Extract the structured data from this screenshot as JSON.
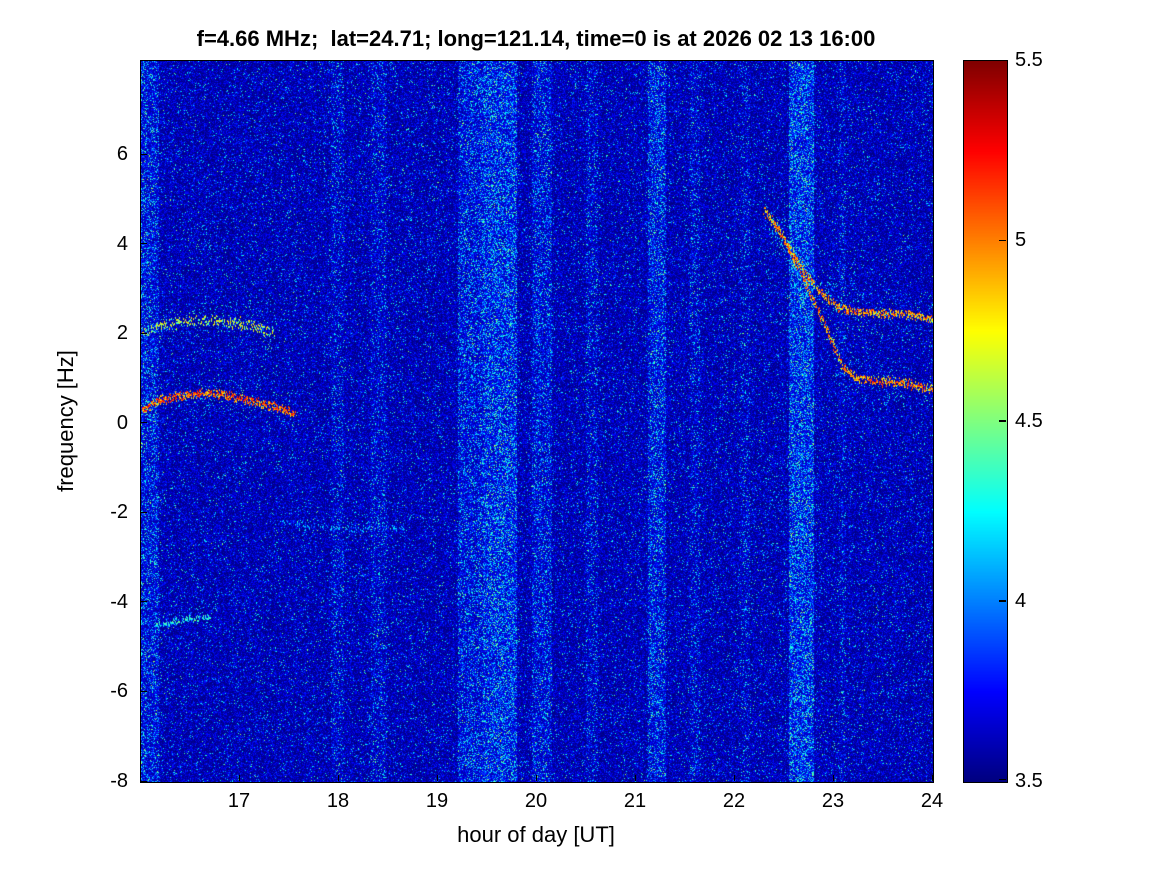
{
  "colors": {
    "background": "#ffffff",
    "text": "#000000",
    "axis": "#000000"
  },
  "chart_data": {
    "type": "heatmap",
    "title": "f=4.66 MHz;  lat=24.71; long=121.14, time=0 is at 2026 02 13 16:00",
    "xlabel": "hour of day [UT]",
    "ylabel": "frequency [Hz]",
    "xlim": [
      16,
      24
    ],
    "ylim": [
      -8,
      8.1
    ],
    "xticks": [
      17,
      18,
      19,
      20,
      21,
      22,
      23,
      24
    ],
    "yticks": [
      6,
      4,
      2,
      0,
      -2,
      -4,
      -6,
      -8
    ],
    "grid": false,
    "legend": false,
    "colorbar": {
      "min": 3.5,
      "max": 5.5,
      "ticks": [
        5.5,
        5,
        4.5,
        4,
        3.5
      ],
      "colormap": "jet",
      "position": "right"
    },
    "noise": {
      "base": 3.5,
      "spread": 0.32,
      "speckle_prob": 0.065,
      "speckle_min": 0.25,
      "speckle_max": 0.8
    },
    "vertical_bands": [
      {
        "x0": 16.0,
        "x1": 16.18,
        "amp": 0.1
      },
      {
        "x0": 17.92,
        "x1": 18.05,
        "amp": 0.05
      },
      {
        "x0": 18.32,
        "x1": 18.48,
        "amp": 0.05
      },
      {
        "x0": 19.2,
        "x1": 19.45,
        "amp": 0.1
      },
      {
        "x0": 19.45,
        "x1": 19.8,
        "amp": 0.15
      },
      {
        "x0": 19.95,
        "x1": 20.15,
        "amp": 0.09
      },
      {
        "x0": 20.5,
        "x1": 20.62,
        "amp": 0.05
      },
      {
        "x0": 21.12,
        "x1": 21.3,
        "amp": 0.11
      },
      {
        "x0": 21.55,
        "x1": 21.65,
        "amp": 0.05
      },
      {
        "x0": 22.05,
        "x1": 22.15,
        "amp": 0.04
      },
      {
        "x0": 22.55,
        "x1": 22.8,
        "amp": 0.16
      },
      {
        "x0": 23.05,
        "x1": 23.12,
        "amp": 0.04
      }
    ],
    "traces": [
      {
        "name": "left-lower-arc",
        "points": [
          [
            16.02,
            0.3
          ],
          [
            16.15,
            0.5
          ],
          [
            16.35,
            0.62
          ],
          [
            16.6,
            0.7
          ],
          [
            16.85,
            0.66
          ],
          [
            17.05,
            0.55
          ],
          [
            17.25,
            0.45
          ],
          [
            17.45,
            0.3
          ],
          [
            17.55,
            0.22
          ]
        ],
        "value": 5.3,
        "width_hz": 0.12,
        "density": 0.95,
        "halo_hz": 0.45,
        "halo_density": 0.35
      },
      {
        "name": "left-upper-trace",
        "points": [
          [
            16.02,
            2.05
          ],
          [
            16.2,
            2.2
          ],
          [
            16.5,
            2.3
          ],
          [
            16.8,
            2.3
          ],
          [
            17.0,
            2.25
          ],
          [
            17.2,
            2.15
          ],
          [
            17.35,
            2.05
          ]
        ],
        "value": 4.9,
        "width_hz": 0.15,
        "density": 0.55,
        "halo_hz": 0.4,
        "halo_density": 0.3
      },
      {
        "name": "left-small-segment",
        "points": [
          [
            16.15,
            -4.5
          ],
          [
            16.3,
            -4.42
          ],
          [
            16.5,
            -4.35
          ],
          [
            16.7,
            -4.33
          ]
        ],
        "value": 4.5,
        "width_hz": 0.08,
        "density": 0.6,
        "halo_hz": 0.2,
        "halo_density": 0.2
      },
      {
        "name": "mid-faint-segment",
        "points": [
          [
            17.45,
            -2.2
          ],
          [
            17.75,
            -2.3
          ],
          [
            18.1,
            -2.35
          ],
          [
            18.45,
            -2.3
          ],
          [
            18.65,
            -2.35
          ]
        ],
        "value": 4.25,
        "width_hz": 0.08,
        "density": 0.35,
        "halo_hz": 0.25,
        "halo_density": 0.15
      },
      {
        "name": "right-upper-trace",
        "points": [
          [
            22.3,
            4.75
          ],
          [
            22.45,
            4.3
          ],
          [
            22.6,
            3.75
          ],
          [
            22.75,
            3.25
          ],
          [
            22.9,
            2.85
          ],
          [
            23.05,
            2.6
          ],
          [
            23.25,
            2.5
          ],
          [
            23.5,
            2.48
          ],
          [
            23.75,
            2.45
          ],
          [
            24.0,
            2.35
          ]
        ],
        "value": 5.2,
        "width_hz": 0.12,
        "density": 0.85,
        "halo_hz": 0.5,
        "halo_density": 0.4
      },
      {
        "name": "right-lower-trace",
        "points": [
          [
            22.4,
            4.5
          ],
          [
            22.55,
            3.9
          ],
          [
            22.7,
            3.2
          ],
          [
            22.85,
            2.5
          ],
          [
            23.0,
            1.75
          ],
          [
            23.1,
            1.25
          ],
          [
            23.25,
            1.0
          ],
          [
            23.5,
            0.95
          ],
          [
            23.75,
            0.9
          ],
          [
            24.0,
            0.78
          ]
        ],
        "value": 5.25,
        "width_hz": 0.12,
        "density": 0.9,
        "halo_hz": 0.5,
        "halo_density": 0.4
      },
      {
        "name": "right-faint-echo",
        "points": [
          [
            22.35,
            4.6
          ],
          [
            22.5,
            4.0
          ],
          [
            22.7,
            3.4
          ],
          [
            22.9,
            3.0
          ],
          [
            23.1,
            2.8
          ]
        ],
        "value": 4.4,
        "width_hz": 0.3,
        "density": 0.3,
        "halo_hz": 0.6,
        "halo_density": 0.2
      }
    ]
  }
}
